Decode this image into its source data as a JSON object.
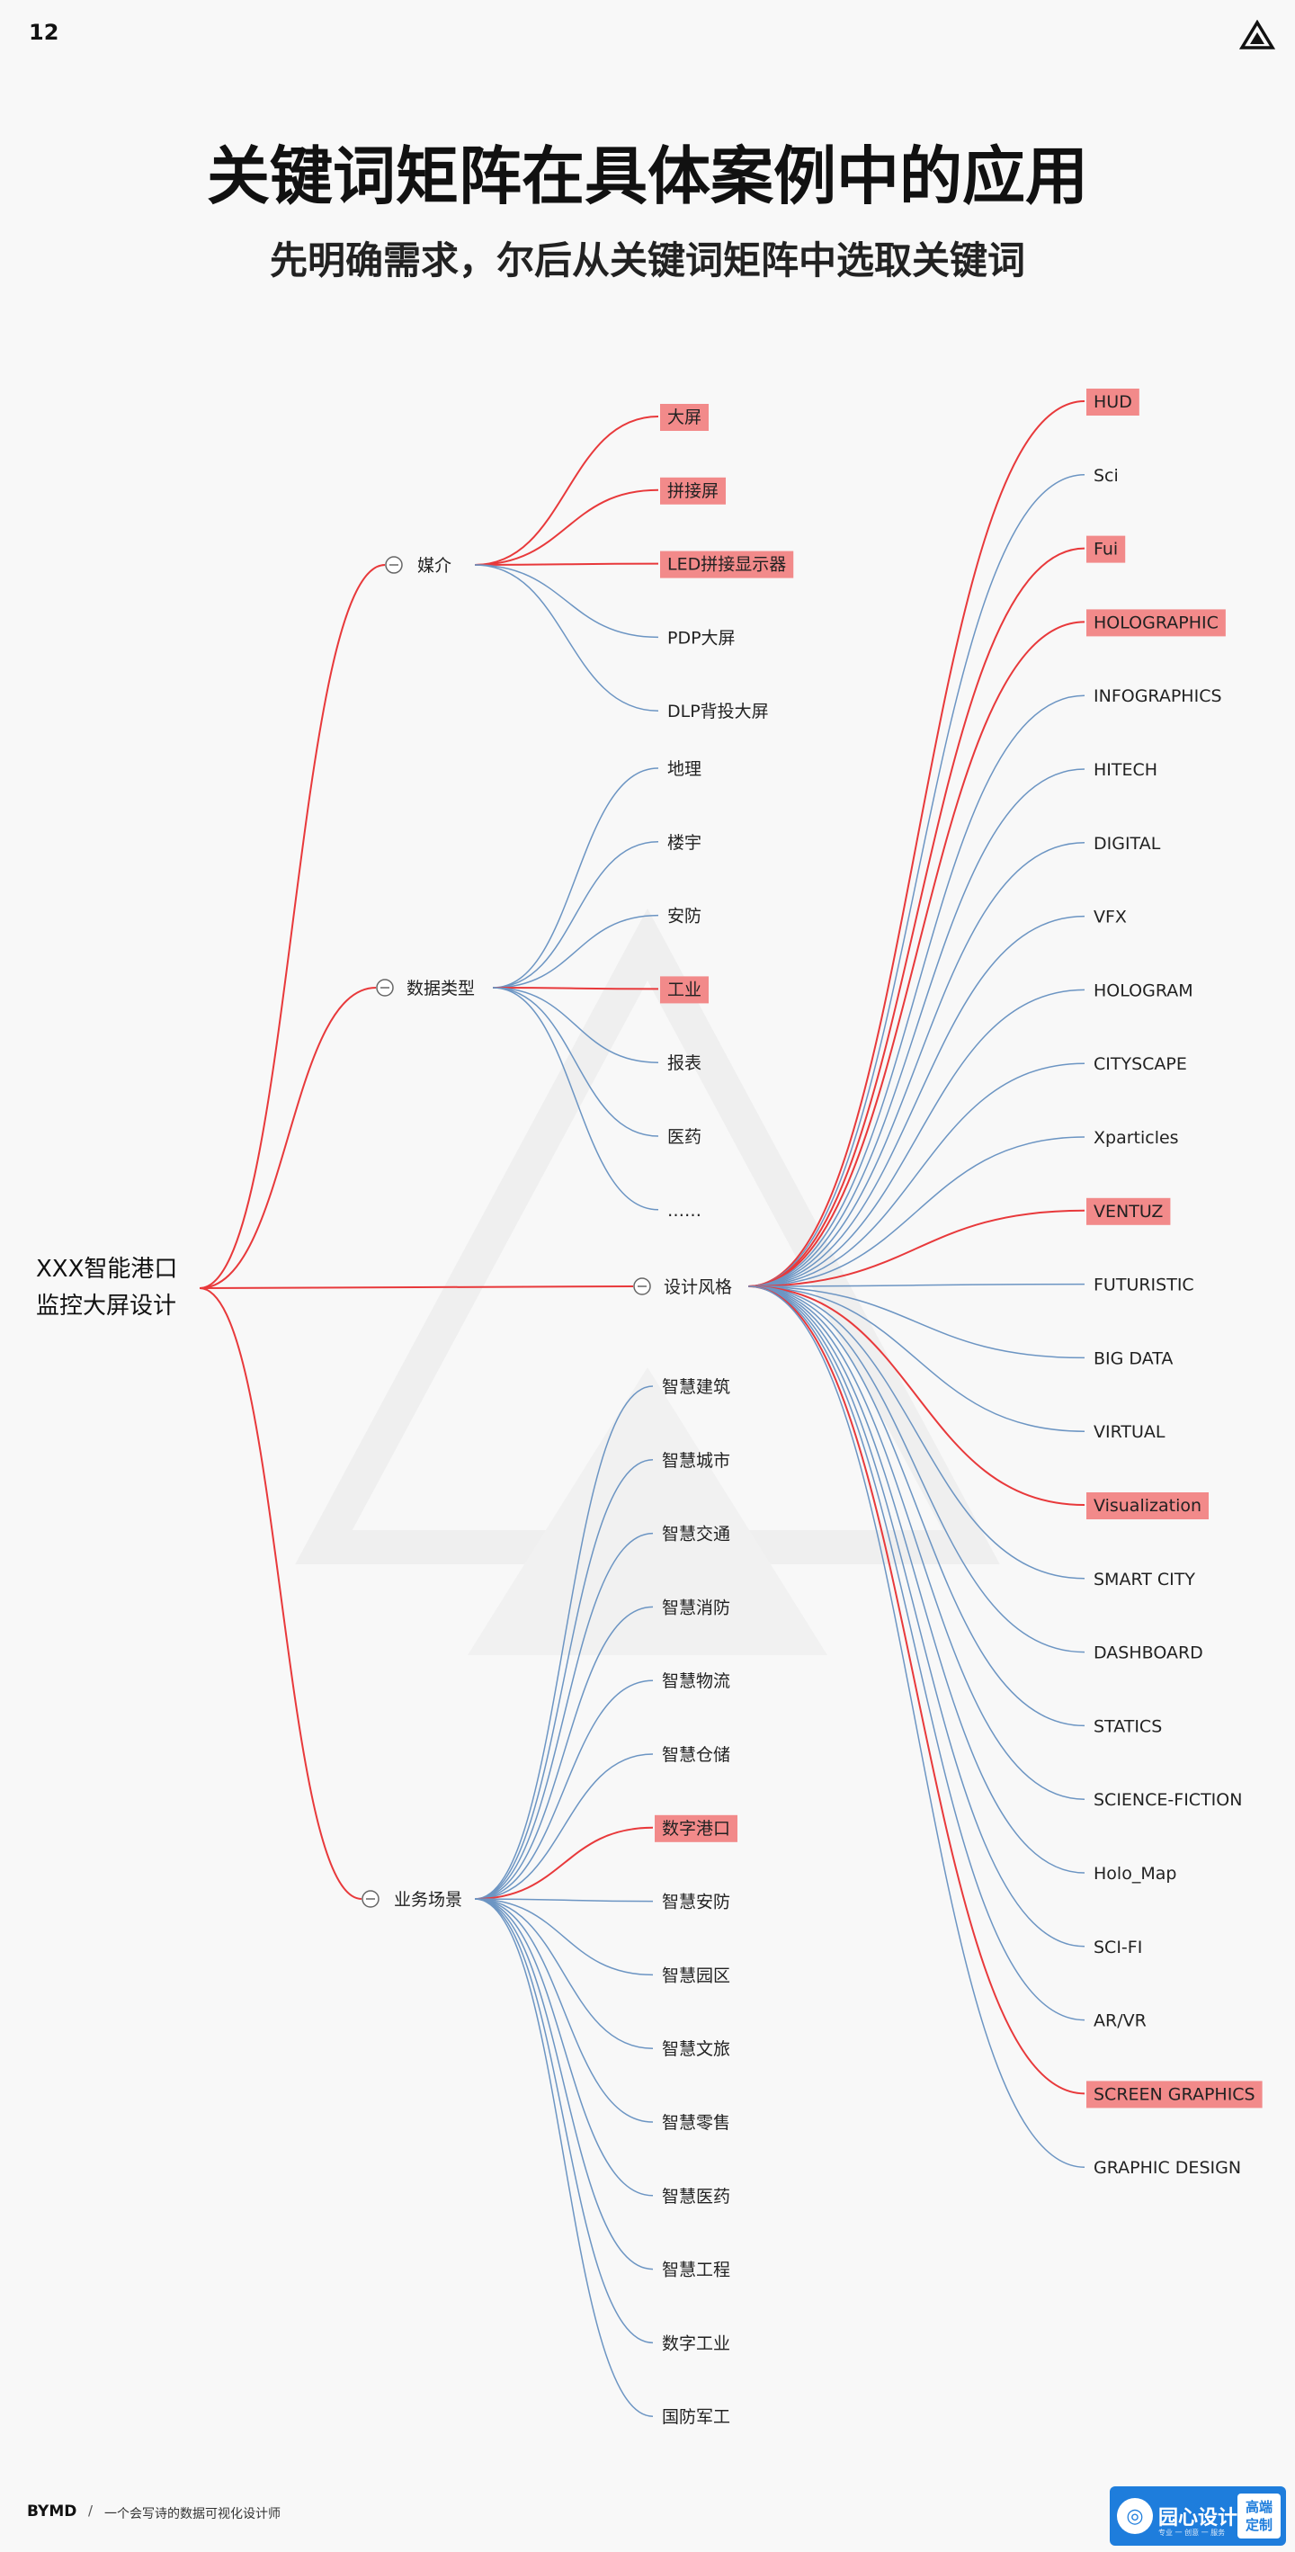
{
  "page": {
    "number": "12",
    "title": "关键词矩阵在具体案例中的应用",
    "subtitle": "先明确需求，尔后从关键词矩阵中选取关键词"
  },
  "icons": {
    "corner": "triangle-logo-icon",
    "collapse": "collapse-circle-icon"
  },
  "colors": {
    "highlight_fill": "#f28a8a",
    "red_link": "#e8393b",
    "blue_link": "#6c95c3",
    "badge_blue": "#1e7ddc"
  },
  "mindmap": {
    "root": {
      "line1": "XXX智能港口",
      "line2": "监控大屏设计"
    },
    "branches": [
      {
        "label": "媒介",
        "leaves": [
          {
            "text": "大屏",
            "highlighted": true
          },
          {
            "text": "拼接屏",
            "highlighted": true
          },
          {
            "text": "LED拼接显示器",
            "highlighted": true
          },
          {
            "text": "PDP大屏",
            "highlighted": false
          },
          {
            "text": "DLP背投大屏",
            "highlighted": false
          }
        ]
      },
      {
        "label": "数据类型",
        "leaves": [
          {
            "text": "地理",
            "highlighted": false
          },
          {
            "text": "楼宇",
            "highlighted": false
          },
          {
            "text": "安防",
            "highlighted": false
          },
          {
            "text": "工业",
            "highlighted": true
          },
          {
            "text": "报表",
            "highlighted": false
          },
          {
            "text": "医药",
            "highlighted": false
          },
          {
            "text": "……",
            "highlighted": false
          }
        ]
      },
      {
        "label": "设计风格",
        "leaves": [
          {
            "text": "HUD",
            "highlighted": true
          },
          {
            "text": "Sci",
            "highlighted": false
          },
          {
            "text": "Fui",
            "highlighted": true
          },
          {
            "text": "HOLOGRAPHIC",
            "highlighted": true
          },
          {
            "text": "INFOGRAPHICS",
            "highlighted": false
          },
          {
            "text": "HITECH",
            "highlighted": false
          },
          {
            "text": "DIGITAL",
            "highlighted": false
          },
          {
            "text": "VFX",
            "highlighted": false
          },
          {
            "text": "HOLOGRAM",
            "highlighted": false
          },
          {
            "text": "CITYSCAPE",
            "highlighted": false
          },
          {
            "text": "Xparticles",
            "highlighted": false
          },
          {
            "text": "VENTUZ",
            "highlighted": true
          },
          {
            "text": "FUTURISTIC",
            "highlighted": false
          },
          {
            "text": "BIG DATA",
            "highlighted": false
          },
          {
            "text": "VIRTUAL",
            "highlighted": false
          },
          {
            "text": "Visualization",
            "highlighted": true
          },
          {
            "text": "SMART CITY",
            "highlighted": false
          },
          {
            "text": "DASHBOARD",
            "highlighted": false
          },
          {
            "text": "STATICS",
            "highlighted": false
          },
          {
            "text": "SCIENCE-FICTION",
            "highlighted": false
          },
          {
            "text": "Holo_Map",
            "highlighted": false
          },
          {
            "text": "SCI-FI",
            "highlighted": false
          },
          {
            "text": "AR/VR",
            "highlighted": false
          },
          {
            "text": "SCREEN GRAPHICS",
            "highlighted": true
          },
          {
            "text": "GRAPHIC DESIGN",
            "highlighted": false
          }
        ]
      },
      {
        "label": "业务场景",
        "leaves": [
          {
            "text": "智慧建筑",
            "highlighted": false
          },
          {
            "text": "智慧城市",
            "highlighted": false
          },
          {
            "text": "智慧交通",
            "highlighted": false
          },
          {
            "text": "智慧消防",
            "highlighted": false
          },
          {
            "text": "智慧物流",
            "highlighted": false
          },
          {
            "text": "智慧仓储",
            "highlighted": false
          },
          {
            "text": "数字港口",
            "highlighted": true
          },
          {
            "text": "智慧安防",
            "highlighted": false
          },
          {
            "text": "智慧园区",
            "highlighted": false
          },
          {
            "text": "智慧文旅",
            "highlighted": false
          },
          {
            "text": "智慧零售",
            "highlighted": false
          },
          {
            "text": "智慧医药",
            "highlighted": false
          },
          {
            "text": "智慧工程",
            "highlighted": false
          },
          {
            "text": "数字工业",
            "highlighted": false
          },
          {
            "text": "国防军工",
            "highlighted": false
          }
        ]
      }
    ]
  },
  "footer": {
    "brand": "BYMD",
    "separator": "/",
    "tagline": "一个会写诗的数据可视化设计师",
    "badge_name": "园心设计",
    "badge_sub": "专业 一 创意 一 服务",
    "badge_box_line1": "高端",
    "badge_box_line2": "定制"
  }
}
